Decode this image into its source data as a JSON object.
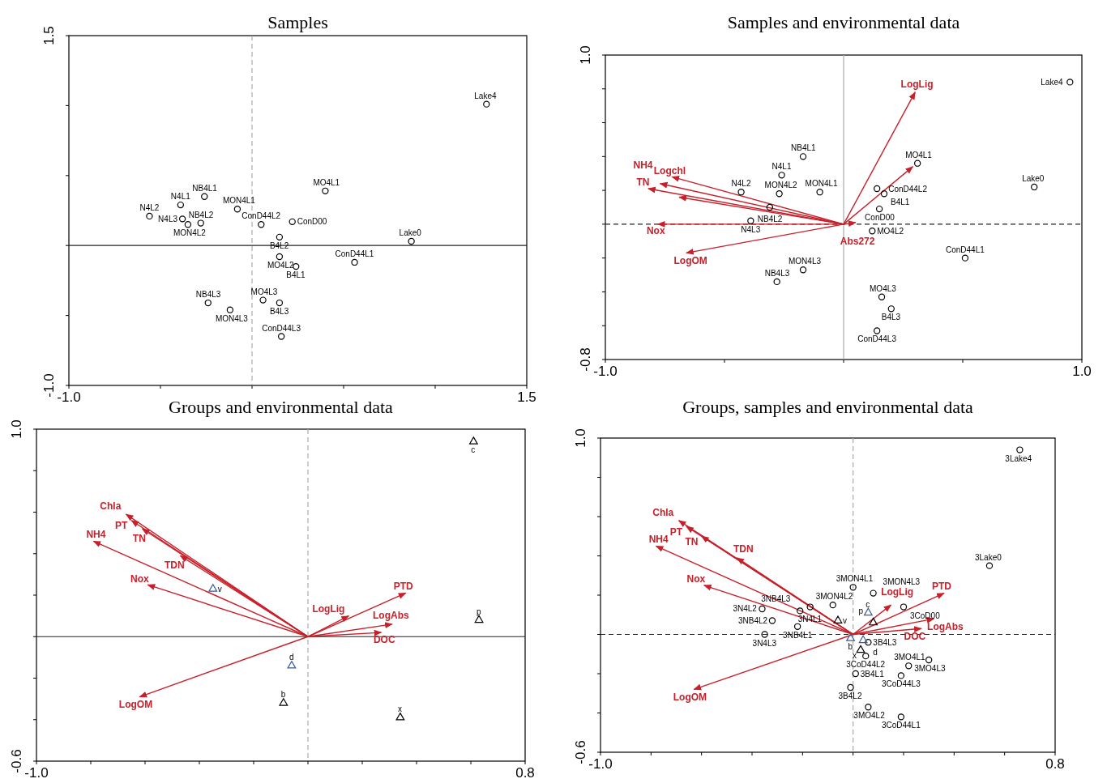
{
  "chart_data": [
    {
      "type": "scatter",
      "title": "Samples",
      "xlim": [
        -1.0,
        1.5
      ],
      "ylim": [
        -1.0,
        1.5
      ],
      "xticks": [
        {
          "value": -1.0,
          "label": "-1.0"
        },
        {
          "value": -0.5,
          "label": null
        },
        {
          "value": 0,
          "label": null
        },
        {
          "value": 0.5,
          "label": null
        },
        {
          "value": 1.0,
          "label": null
        },
        {
          "value": 1.5,
          "label": "1.5"
        }
      ],
      "yticks": [
        {
          "value": -1.0,
          "label": "-1.0"
        },
        {
          "value": -0.5,
          "label": null
        },
        {
          "value": 0,
          "label": null
        },
        {
          "value": 0.5,
          "label": null
        },
        {
          "value": 1.0,
          "label": null
        },
        {
          "value": 1.5,
          "label": "1.5"
        }
      ],
      "grid": false,
      "ref_lines": [
        {
          "axis": "x",
          "value": 0,
          "color": "#aaaaaa",
          "line_style": "dashed"
        },
        {
          "axis": "y",
          "value": 0,
          "color": "#222222",
          "line_style": "solid"
        }
      ],
      "series": [
        {
          "type": "scatter",
          "marker": "circle",
          "color": "#000000",
          "x": [
            1.28,
            0.4,
            -0.26,
            -0.39,
            -0.08,
            -0.56,
            -0.38,
            -0.35,
            -0.28,
            0.05,
            0.22,
            0.15,
            0.87,
            0.15,
            0.24,
            0.56,
            -0.24,
            -0.12,
            0.06,
            0.15,
            0.16
          ],
          "values": [
            1.01,
            0.39,
            0.35,
            0.29,
            0.26,
            0.21,
            0.19,
            0.15,
            0.16,
            0.15,
            0.17,
            0.06,
            0.03,
            -0.08,
            -0.15,
            -0.12,
            -0.41,
            -0.46,
            -0.39,
            -0.41,
            -0.65
          ],
          "value_labels": [
            "Lake4",
            "MO4L1",
            "NB4L1",
            "N4L1",
            "MON4L1",
            "N4L2",
            "N4L3",
            "MON4L2",
            "NB4L2",
            "ConD44L2",
            "ConD00",
            "B4L2",
            "Lake0",
            "MO4L2",
            "B4L1",
            "ConD44L1",
            "NB4L3",
            "MON4L3",
            "MO4L3",
            "B4L3",
            "ConD44L3"
          ]
        }
      ]
    },
    {
      "type": "scatter",
      "title": "Samples and environmental data",
      "xlim": [
        -1.0,
        1.0
      ],
      "ylim": [
        -0.8,
        1.0
      ],
      "xticks": [
        {
          "value": -1.0,
          "label": "-1.0"
        },
        {
          "value": -0.5,
          "label": null
        },
        {
          "value": 0,
          "label": null
        },
        {
          "value": 0.5,
          "label": null
        },
        {
          "value": 1.0,
          "label": "1.0"
        }
      ],
      "yticks": [
        {
          "value": -0.8,
          "label": "-0.8"
        },
        {
          "value": -0.6,
          "label": null
        },
        {
          "value": -0.4,
          "label": null
        },
        {
          "value": -0.2,
          "label": null
        },
        {
          "value": 0,
          "label": null
        },
        {
          "value": 0.2,
          "label": null
        },
        {
          "value": 0.4,
          "label": null
        },
        {
          "value": 0.6,
          "label": null
        },
        {
          "value": 0.8,
          "label": null
        },
        {
          "value": 1.0,
          "label": "1.0"
        }
      ],
      "grid": false,
      "ref_lines": [
        {
          "axis": "x",
          "value": 0,
          "color": "#aaaaaa",
          "line_style": "solid"
        },
        {
          "axis": "y",
          "value": 0,
          "color": "#222222",
          "line_style": "dashed"
        }
      ],
      "series": [
        {
          "type": "scatter",
          "marker": "circle",
          "color": "#000000",
          "x": [
            0.95,
            -0.17,
            -0.26,
            -0.43,
            -0.27,
            -0.1,
            -0.31,
            -0.39,
            0.31,
            0.14,
            0.17,
            0.15,
            0.8,
            0.12,
            0.51,
            -0.17,
            -0.28,
            0.16,
            0.2,
            0.14
          ],
          "values": [
            0.84,
            0.4,
            0.29,
            0.19,
            0.18,
            0.19,
            0.1,
            0.02,
            0.36,
            0.21,
            0.18,
            0.09,
            0.22,
            -0.04,
            -0.2,
            -0.27,
            -0.34,
            -0.43,
            -0.5,
            -0.63
          ],
          "value_labels": [
            "Lake4",
            "NB4L1",
            "N4L1",
            "N4L2",
            "MON4L2",
            "MON4L1",
            "NB4L2",
            "N4L3",
            "MO4L1",
            "ConD44L2",
            "B4L1",
            "ConD00",
            "Lake0",
            "MO4L2",
            "ConD44L1",
            "MON4L3",
            "NB4L3",
            "MO4L3",
            "B4L3",
            "ConD44L3"
          ]
        },
        {
          "type": "line",
          "name": "LogLig",
          "color": "#c8202a",
          "x": [
            0,
            0.3
          ],
          "values": [
            0,
            0.78
          ]
        },
        {
          "type": "line",
          "color": "#c8202a",
          "x": [
            0,
            0.29
          ],
          "values": [
            0,
            0.34
          ]
        },
        {
          "type": "line",
          "name": "Logchl",
          "color": "#c8202a",
          "x": [
            0,
            -0.72
          ],
          "values": [
            0,
            0.28
          ]
        },
        {
          "type": "line",
          "name": "NH4",
          "color": "#c8202a",
          "x": [
            0,
            -0.77
          ],
          "values": [
            0,
            0.24
          ]
        },
        {
          "type": "line",
          "name": "TN",
          "color": "#c8202a",
          "x": [
            0,
            -0.82
          ],
          "values": [
            0,
            0.21
          ]
        },
        {
          "type": "line",
          "color": "#c8202a",
          "x": [
            0,
            -0.69
          ],
          "values": [
            0,
            0.16
          ]
        },
        {
          "type": "line",
          "name": "Nox",
          "color": "#c8202a",
          "x": [
            0,
            -0.78
          ],
          "values": [
            0,
            0.0
          ]
        },
        {
          "type": "line",
          "name": "LogOM",
          "color": "#c8202a",
          "x": [
            0,
            -0.66
          ],
          "values": [
            0,
            -0.17
          ]
        },
        {
          "type": "line",
          "name": "Abs272",
          "color": "#c8202a",
          "x": [
            0,
            0.05
          ],
          "values": [
            0,
            0.01
          ]
        }
      ]
    },
    {
      "type": "scatter",
      "title": "Groups and environmental data",
      "xlim": [
        -1.0,
        0.8
      ],
      "ylim": [
        -0.6,
        1.0
      ],
      "xticks": [
        {
          "value": -1.0,
          "label": "-1.0"
        },
        {
          "value": -0.8,
          "label": null
        },
        {
          "value": -0.6,
          "label": null
        },
        {
          "value": -0.4,
          "label": null
        },
        {
          "value": -0.2,
          "label": null
        },
        {
          "value": 0,
          "label": null
        },
        {
          "value": 0.2,
          "label": null
        },
        {
          "value": 0.4,
          "label": null
        },
        {
          "value": 0.6,
          "label": null
        },
        {
          "value": 0.8,
          "label": "0.8"
        }
      ],
      "yticks": [
        {
          "value": -0.6,
          "label": "-0.6"
        },
        {
          "value": -0.4,
          "label": null
        },
        {
          "value": -0.2,
          "label": null
        },
        {
          "value": 0,
          "label": null
        },
        {
          "value": 0.2,
          "label": null
        },
        {
          "value": 0.4,
          "label": null
        },
        {
          "value": 0.6,
          "label": null
        },
        {
          "value": 0.8,
          "label": null
        },
        {
          "value": 1.0,
          "label": "1.0"
        }
      ],
      "grid": false,
      "ref_lines": [
        {
          "axis": "x",
          "value": 0,
          "color": "#aaaaaa",
          "line_style": "dashed"
        },
        {
          "axis": "y",
          "value": 0,
          "color": "#222222",
          "line_style": "solid"
        }
      ],
      "series": [
        {
          "type": "scatter",
          "marker": "triangle",
          "colors": [
            "#000000",
            "#000000",
            "#3a5a9a",
            "#3a5a9a",
            "#000000",
            "#000000"
          ],
          "x": [
            0.61,
            0.63,
            -0.35,
            -0.06,
            -0.09,
            0.34
          ],
          "values": [
            0.94,
            0.08,
            0.23,
            -0.14,
            -0.32,
            -0.39
          ],
          "value_labels": [
            "c",
            "p",
            "v",
            "d",
            "b",
            "x"
          ]
        },
        {
          "type": "line",
          "name": "Chla",
          "color": "#c8202a",
          "x": [
            0,
            -0.67
          ],
          "values": [
            0,
            0.59
          ]
        },
        {
          "type": "line",
          "name": "PT",
          "color": "#c8202a",
          "x": [
            0,
            -0.65
          ],
          "values": [
            0,
            0.56
          ]
        },
        {
          "type": "line",
          "name": "TN",
          "color": "#c8202a",
          "x": [
            0,
            -0.61
          ],
          "values": [
            0,
            0.52
          ]
        },
        {
          "type": "line",
          "name": "TDN",
          "color": "#c8202a",
          "x": [
            0,
            -0.47
          ],
          "values": [
            0,
            0.39
          ]
        },
        {
          "type": "line",
          "name": "NH4",
          "color": "#c8202a",
          "x": [
            0,
            -0.79
          ],
          "values": [
            0,
            0.46
          ]
        },
        {
          "type": "line",
          "name": "Nox",
          "color": "#c8202a",
          "x": [
            0,
            -0.59
          ],
          "values": [
            0,
            0.25
          ]
        },
        {
          "type": "line",
          "name": "LogOM",
          "color": "#c8202a",
          "x": [
            0,
            -0.62
          ],
          "values": [
            0,
            -0.29
          ]
        },
        {
          "type": "line",
          "name": "PTD",
          "color": "#c8202a",
          "x": [
            0,
            0.36
          ],
          "values": [
            0,
            0.21
          ]
        },
        {
          "type": "line",
          "name": "LogLig",
          "color": "#c8202a",
          "x": [
            0,
            0.15
          ],
          "values": [
            0,
            0.1
          ]
        },
        {
          "type": "line",
          "name": "LogAbs",
          "color": "#c8202a",
          "x": [
            0,
            0.31
          ],
          "values": [
            0,
            0.06
          ]
        },
        {
          "type": "line",
          "name": "DOC",
          "color": "#c8202a",
          "x": [
            0,
            0.27
          ],
          "values": [
            0,
            0.02
          ]
        }
      ]
    },
    {
      "type": "scatter",
      "title": "Groups, samples and environmental data",
      "xlim": [
        -1.0,
        0.8
      ],
      "ylim": [
        -0.6,
        1.0
      ],
      "xticks": [
        {
          "value": -1.0,
          "label": "-1.0"
        },
        {
          "value": -0.8,
          "label": null
        },
        {
          "value": -0.6,
          "label": null
        },
        {
          "value": -0.4,
          "label": null
        },
        {
          "value": -0.2,
          "label": null
        },
        {
          "value": 0,
          "label": null
        },
        {
          "value": 0.2,
          "label": null
        },
        {
          "value": 0.4,
          "label": null
        },
        {
          "value": 0.6,
          "label": null
        },
        {
          "value": 0.8,
          "label": "0.8"
        }
      ],
      "yticks": [
        {
          "value": -0.6,
          "label": "-0.6"
        },
        {
          "value": -0.4,
          "label": null
        },
        {
          "value": -0.2,
          "label": null
        },
        {
          "value": 0,
          "label": null
        },
        {
          "value": 0.2,
          "label": null
        },
        {
          "value": 0.4,
          "label": null
        },
        {
          "value": 0.6,
          "label": null
        },
        {
          "value": 0.8,
          "label": null
        },
        {
          "value": 1.0,
          "label": "1.0"
        }
      ],
      "grid": false,
      "ref_lines": [
        {
          "axis": "x",
          "value": 0,
          "color": "#aaaaaa",
          "line_style": "dashed"
        },
        {
          "axis": "y",
          "value": 0,
          "color": "#222222",
          "line_style": "dashed"
        }
      ],
      "series": [
        {
          "type": "scatter",
          "marker": "circle",
          "color": "#000000",
          "x": [
            0.66,
            0.54,
            0.0,
            0.08,
            -0.08,
            0.2,
            -0.36,
            -0.32,
            -0.22,
            -0.21,
            -0.17,
            -0.35,
            0.06,
            0.05,
            0.01,
            -0.01,
            0.06,
            0.19,
            0.19,
            0.22,
            0.3
          ],
          "values": [
            0.94,
            0.35,
            0.24,
            0.21,
            0.15,
            0.14,
            0.13,
            0.07,
            0.04,
            0.12,
            0.14,
            0.0,
            -0.04,
            -0.11,
            -0.2,
            -0.27,
            -0.37,
            -0.42,
            -0.21,
            -0.16,
            -0.13
          ],
          "value_labels": [
            "3Lake4",
            "3Lake0",
            "3MON4L1",
            "3MON4L3",
            "3MON4L2",
            "3CoD00",
            "3N4L2",
            "3NB4L2",
            "3NB4L1",
            "3NB4L3",
            "3N4L1",
            "3N4L3",
            "3B4L3",
            "3CoD44L2",
            "3B4L1",
            "3B4L2",
            "3MO4L2",
            "3CoD44L1",
            "3CoD44L3",
            "3MO4L1",
            "3MO4L3"
          ]
        },
        {
          "type": "scatter",
          "marker": "triangle",
          "colors": [
            "#3a5a9a",
            "#000000",
            "#000000",
            "#3a5a9a",
            "#3a5a9a",
            "#000000"
          ],
          "x": [
            0.06,
            0.08,
            -0.06,
            -0.01,
            0.04,
            0.03
          ],
          "values": [
            0.11,
            0.06,
            0.07,
            -0.02,
            -0.03,
            -0.08
          ],
          "value_labels": [
            "c",
            "p",
            "v",
            "b",
            "d",
            "x"
          ]
        },
        {
          "type": "line",
          "name": "Chla",
          "color": "#c8202a",
          "x": [
            0,
            -0.69
          ],
          "values": [
            0,
            0.58
          ]
        },
        {
          "type": "line",
          "name": "PT",
          "color": "#c8202a",
          "x": [
            0,
            -0.66
          ],
          "values": [
            0,
            0.55
          ]
        },
        {
          "type": "line",
          "name": "TN",
          "color": "#c8202a",
          "x": [
            0,
            -0.6
          ],
          "values": [
            0,
            0.5
          ]
        },
        {
          "type": "line",
          "name": "TDN",
          "color": "#c8202a",
          "x": [
            0,
            -0.46
          ],
          "values": [
            0,
            0.39
          ]
        },
        {
          "type": "line",
          "name": "NH4",
          "color": "#c8202a",
          "x": [
            0,
            -0.78
          ],
          "values": [
            0,
            0.45
          ]
        },
        {
          "type": "line",
          "name": "Nox",
          "color": "#c8202a",
          "x": [
            0,
            -0.59
          ],
          "values": [
            0,
            0.25
          ]
        },
        {
          "type": "line",
          "name": "LogOM",
          "color": "#c8202a",
          "x": [
            0,
            -0.63
          ],
          "values": [
            0,
            -0.28
          ]
        },
        {
          "type": "line",
          "name": "PTD",
          "color": "#c8202a",
          "x": [
            0,
            0.36
          ],
          "values": [
            0,
            0.21
          ]
        },
        {
          "type": "line",
          "name": "LogLig",
          "color": "#c8202a",
          "x": [
            0,
            0.15
          ],
          "values": [
            0,
            0.15
          ]
        },
        {
          "type": "line",
          "name": "LogAbs",
          "color": "#c8202a",
          "x": [
            0,
            0.32
          ],
          "values": [
            0,
            0.08
          ]
        },
        {
          "type": "line",
          "name": "DOC",
          "color": "#c8202a",
          "x": [
            0,
            0.27
          ],
          "values": [
            0,
            0.03
          ]
        }
      ]
    }
  ]
}
